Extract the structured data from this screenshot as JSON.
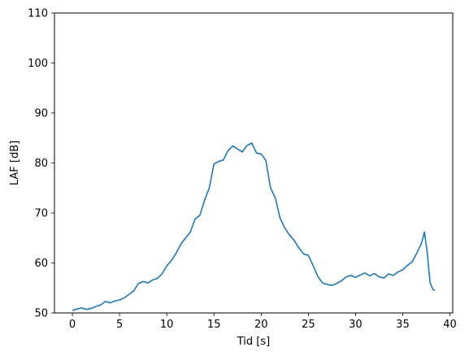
{
  "chart_data": {
    "type": "line",
    "title": "",
    "xlabel": "Tid [s]",
    "ylabel": "LAF [dB]",
    "xlim": [
      -1.9,
      40.3
    ],
    "ylim": [
      50,
      110
    ],
    "xticks": [
      0,
      5,
      10,
      15,
      20,
      25,
      30,
      35,
      40
    ],
    "yticks": [
      50,
      60,
      70,
      80,
      90,
      100,
      110
    ],
    "grid": false,
    "legend": "none",
    "series": [
      {
        "color": "#1f77b4",
        "x": [
          0,
          0.5,
          1,
          1.5,
          2,
          2.5,
          3,
          3.5,
          4,
          4.5,
          5,
          5.5,
          6,
          6.5,
          7,
          7.5,
          8,
          8.5,
          9,
          9.5,
          10,
          10.5,
          11,
          11.5,
          12,
          12.5,
          13,
          13.5,
          14,
          14.5,
          15,
          15.5,
          16,
          16.5,
          17,
          17.5,
          18,
          18.5,
          19,
          19.5,
          20,
          20.5,
          21,
          21.5,
          22,
          22.5,
          23,
          23.5,
          24,
          24.5,
          25,
          25.5,
          26,
          26.5,
          27,
          27.5,
          28,
          28.5,
          29,
          29.5,
          30,
          30.5,
          31,
          31.5,
          32,
          32.5,
          33,
          33.5,
          34,
          34.5,
          35,
          35.5,
          36,
          36.5,
          37,
          37.3,
          37.6,
          37.9,
          38.2,
          38.4
        ],
        "y": [
          50.5,
          50.8,
          51.0,
          50.7,
          50.9,
          51.3,
          51.6,
          52.3,
          52.0,
          52.4,
          52.6,
          53.0,
          53.7,
          54.4,
          55.9,
          56.3,
          56.0,
          56.6,
          56.9,
          57.8,
          59.4,
          60.5,
          62.0,
          63.8,
          65.0,
          66.2,
          68.8,
          69.5,
          72.5,
          75.0,
          79.8,
          80.3,
          80.6,
          82.5,
          83.4,
          82.8,
          82.2,
          83.5,
          84.0,
          82.0,
          81.8,
          80.5,
          75.0,
          73.0,
          69.0,
          67.0,
          65.6,
          64.5,
          63.0,
          61.8,
          61.5,
          59.5,
          57.3,
          56.0,
          55.7,
          55.5,
          55.9,
          56.4,
          57.2,
          57.5,
          57.1,
          57.6,
          58.0,
          57.4,
          57.9,
          57.2,
          57.0,
          57.8,
          57.5,
          58.2,
          58.6,
          59.5,
          60.2,
          62.0,
          64.0,
          66.2,
          62.0,
          56.0,
          54.7,
          54.5
        ]
      }
    ]
  }
}
